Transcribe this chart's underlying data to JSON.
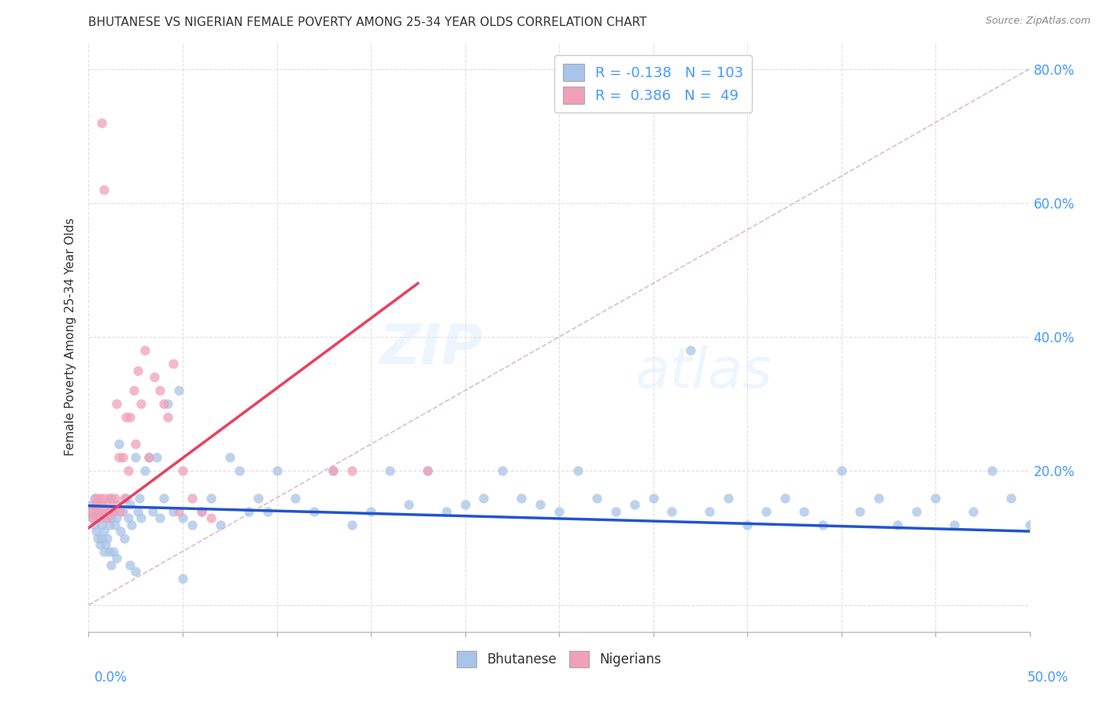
{
  "title": "BHUTANESE VS NIGERIAN FEMALE POVERTY AMONG 25-34 YEAR OLDS CORRELATION CHART",
  "source": "Source: ZipAtlas.com",
  "ylabel": "Female Poverty Among 25-34 Year Olds",
  "xlim": [
    0.0,
    0.5
  ],
  "ylim": [
    -0.04,
    0.84
  ],
  "blue_color": "#a8c4e8",
  "pink_color": "#f0a0b8",
  "blue_line_color": "#2255cc",
  "pink_line_color": "#e84060",
  "ref_line_color": "#d0a0b0",
  "background_color": "#ffffff",
  "grid_color": "#e0e0e0",
  "right_tick_color": "#4499ff",
  "title_color": "#333333",
  "source_color": "#888888",
  "ylabel_color": "#333333",
  "axis_label_color": "#4499ff",
  "legend_label_color": "#4499ff",
  "bottom_legend_color": "#333333",
  "watermark_color": "#ddeeff",
  "legend_blue_R": "-0.138",
  "legend_blue_N": "103",
  "legend_pink_R": "0.386",
  "legend_pink_N": "49",
  "bhutanese_x": [
    0.001,
    0.002,
    0.002,
    0.003,
    0.003,
    0.004,
    0.004,
    0.005,
    0.005,
    0.006,
    0.006,
    0.007,
    0.007,
    0.008,
    0.008,
    0.009,
    0.009,
    0.01,
    0.01,
    0.011,
    0.011,
    0.012,
    0.012,
    0.013,
    0.013,
    0.014,
    0.015,
    0.016,
    0.017,
    0.018,
    0.019,
    0.02,
    0.021,
    0.022,
    0.023,
    0.025,
    0.026,
    0.027,
    0.028,
    0.03,
    0.032,
    0.034,
    0.036,
    0.038,
    0.04,
    0.042,
    0.045,
    0.048,
    0.05,
    0.055,
    0.06,
    0.065,
    0.07,
    0.075,
    0.08,
    0.085,
    0.09,
    0.095,
    0.1,
    0.11,
    0.12,
    0.13,
    0.14,
    0.15,
    0.16,
    0.17,
    0.18,
    0.19,
    0.2,
    0.21,
    0.22,
    0.23,
    0.24,
    0.25,
    0.26,
    0.27,
    0.28,
    0.29,
    0.3,
    0.31,
    0.32,
    0.33,
    0.34,
    0.35,
    0.36,
    0.37,
    0.38,
    0.39,
    0.4,
    0.41,
    0.42,
    0.43,
    0.44,
    0.45,
    0.46,
    0.47,
    0.48,
    0.49,
    0.5,
    0.025,
    0.022,
    0.05,
    0.015
  ],
  "bhutanese_y": [
    0.14,
    0.15,
    0.13,
    0.16,
    0.12,
    0.13,
    0.11,
    0.14,
    0.1,
    0.13,
    0.09,
    0.12,
    0.1,
    0.11,
    0.08,
    0.13,
    0.09,
    0.14,
    0.1,
    0.12,
    0.08,
    0.13,
    0.06,
    0.14,
    0.08,
    0.12,
    0.13,
    0.24,
    0.11,
    0.14,
    0.1,
    0.16,
    0.13,
    0.15,
    0.12,
    0.22,
    0.14,
    0.16,
    0.13,
    0.2,
    0.22,
    0.14,
    0.22,
    0.13,
    0.16,
    0.3,
    0.14,
    0.32,
    0.13,
    0.12,
    0.14,
    0.16,
    0.12,
    0.22,
    0.2,
    0.14,
    0.16,
    0.14,
    0.2,
    0.16,
    0.14,
    0.2,
    0.12,
    0.14,
    0.2,
    0.15,
    0.2,
    0.14,
    0.15,
    0.16,
    0.2,
    0.16,
    0.15,
    0.14,
    0.2,
    0.16,
    0.14,
    0.15,
    0.16,
    0.14,
    0.38,
    0.14,
    0.16,
    0.12,
    0.14,
    0.16,
    0.14,
    0.12,
    0.2,
    0.14,
    0.16,
    0.12,
    0.14,
    0.16,
    0.12,
    0.14,
    0.2,
    0.16,
    0.12,
    0.05,
    0.06,
    0.04,
    0.07
  ],
  "nigerians_x": [
    0.001,
    0.002,
    0.003,
    0.004,
    0.004,
    0.005,
    0.005,
    0.006,
    0.006,
    0.007,
    0.007,
    0.008,
    0.008,
    0.009,
    0.01,
    0.01,
    0.011,
    0.012,
    0.012,
    0.013,
    0.014,
    0.015,
    0.015,
    0.016,
    0.017,
    0.018,
    0.019,
    0.02,
    0.021,
    0.022,
    0.024,
    0.025,
    0.026,
    0.028,
    0.03,
    0.032,
    0.035,
    0.038,
    0.04,
    0.042,
    0.045,
    0.048,
    0.05,
    0.055,
    0.06,
    0.065,
    0.13,
    0.14,
    0.18
  ],
  "nigerians_y": [
    0.14,
    0.13,
    0.15,
    0.16,
    0.14,
    0.13,
    0.15,
    0.14,
    0.16,
    0.72,
    0.15,
    0.62,
    0.16,
    0.14,
    0.15,
    0.13,
    0.16,
    0.16,
    0.14,
    0.14,
    0.16,
    0.3,
    0.15,
    0.22,
    0.14,
    0.22,
    0.16,
    0.28,
    0.2,
    0.28,
    0.32,
    0.24,
    0.35,
    0.3,
    0.38,
    0.22,
    0.34,
    0.32,
    0.3,
    0.28,
    0.36,
    0.14,
    0.2,
    0.16,
    0.14,
    0.13,
    0.2,
    0.2,
    0.2
  ]
}
